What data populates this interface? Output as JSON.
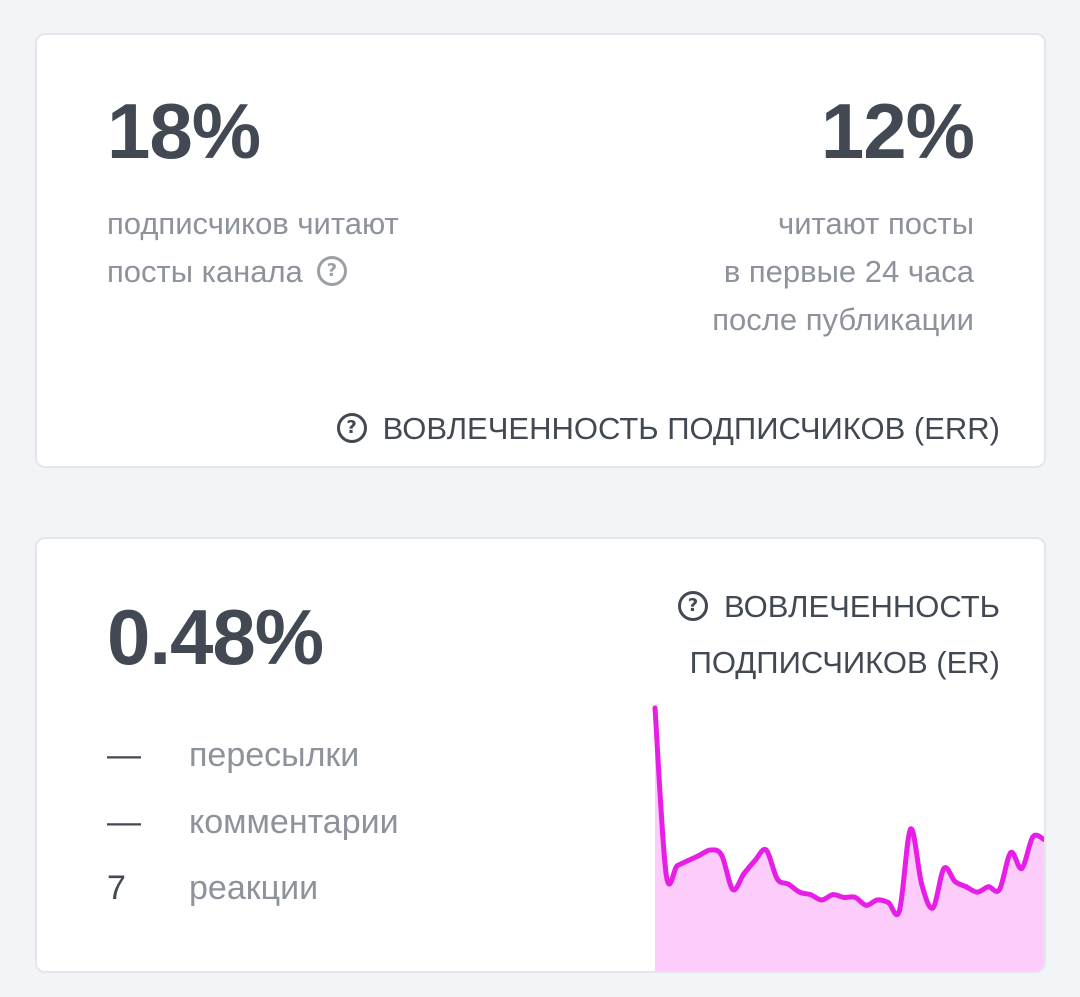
{
  "err_card": {
    "left_value": "18%",
    "left_desc": [
      "подписчиков читают",
      "посты канала"
    ],
    "right_value": "12%",
    "right_desc": [
      "читают посты",
      "в первые 24 часа",
      "после публикации"
    ],
    "title": "ВОВЛЕЧЕННОСТЬ ПОДПИСЧИКОВ (ERR)",
    "help_glyph": "?",
    "help_icon": "question-circle-icon"
  },
  "er_card": {
    "value": "0.48%",
    "title": [
      "ВОВЛЕЧЕННОСТЬ",
      "ПОДПИСЧИКОВ (ER)"
    ],
    "help_glyph": "?",
    "help_icon": "question-circle-icon",
    "metrics": [
      {
        "value": "—",
        "label": "пересылки"
      },
      {
        "value": "—",
        "label": "комментарии"
      },
      {
        "value": "7",
        "label": "реакции"
      }
    ]
  },
  "chart_data": {
    "type": "area",
    "xlabel": "",
    "ylabel": "",
    "grid": false,
    "legend": "none",
    "color": "#e61ee6",
    "fill_color": "#fccdfa",
    "values": [
      100,
      37,
      40,
      42,
      44,
      46,
      44,
      31,
      37,
      42,
      46,
      35,
      33,
      30,
      29,
      27,
      29,
      28,
      28,
      25,
      27,
      26,
      23,
      54,
      33,
      24,
      39,
      34,
      32,
      30,
      32,
      31,
      45,
      39,
      51,
      50
    ]
  },
  "colors": {
    "background": "#f3f4f8",
    "card": "#ffffff",
    "card_border": "#e4e6ec",
    "value_text": "#424953",
    "muted_text": "#8d929b"
  }
}
